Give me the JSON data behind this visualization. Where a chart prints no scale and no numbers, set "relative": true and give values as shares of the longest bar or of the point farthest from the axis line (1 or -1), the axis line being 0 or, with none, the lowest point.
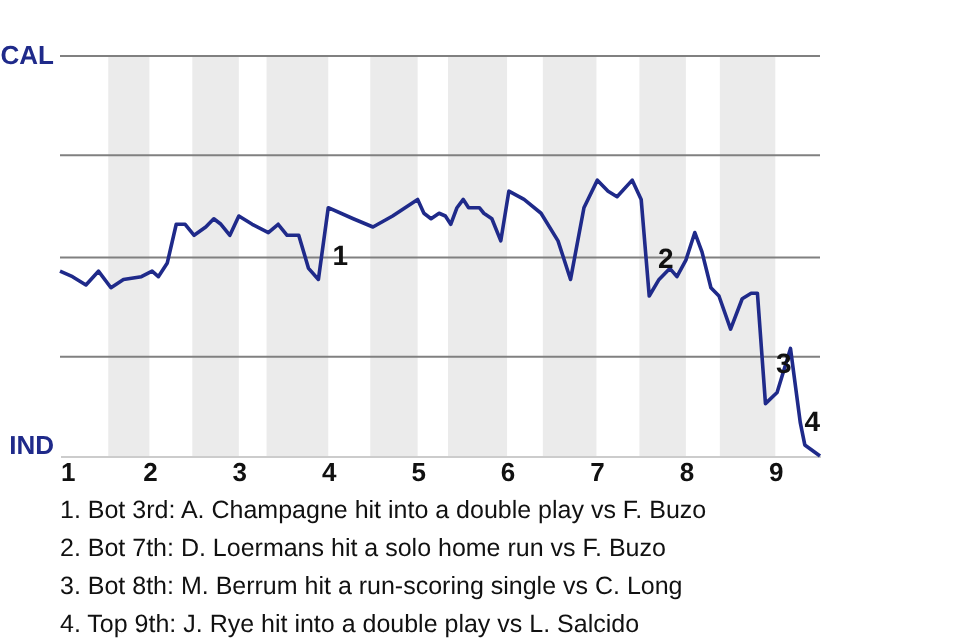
{
  "chart_data": {
    "type": "line",
    "relative": true,
    "x": [
      1.0,
      1.14,
      1.29,
      1.43,
      1.57,
      1.71,
      1.91,
      2.03,
      2.1,
      2.2,
      2.3,
      2.4,
      2.5,
      2.63,
      2.72,
      2.8,
      2.9,
      3.0,
      3.15,
      3.33,
      3.44,
      3.54,
      3.67,
      3.78,
      3.89,
      4.0,
      4.28,
      4.5,
      4.72,
      5.0,
      5.07,
      5.15,
      5.24,
      5.31,
      5.37,
      5.44,
      5.51,
      5.57,
      5.69,
      5.74,
      5.83,
      5.93,
      6.02,
      6.19,
      6.38,
      6.57,
      6.71,
      6.86,
      7.01,
      7.13,
      7.23,
      7.4,
      7.5,
      7.59,
      7.7,
      7.82,
      7.9,
      8.0,
      8.1,
      8.18,
      8.28,
      8.37,
      8.5,
      8.63,
      8.73,
      8.8,
      8.89,
      9.02,
      9.17,
      9.28,
      9.33,
      9.5
    ],
    "series": [
      {
        "color": "#1f2a8a",
        "values": [
          0.67,
          0.65,
          0.62,
          0.67,
          0.61,
          0.64,
          0.65,
          0.67,
          0.65,
          0.7,
          0.84,
          0.84,
          0.8,
          0.83,
          0.86,
          0.84,
          0.8,
          0.87,
          0.84,
          0.81,
          0.84,
          0.8,
          0.8,
          0.68,
          0.64,
          0.9,
          0.86,
          0.83,
          0.87,
          0.93,
          0.88,
          0.86,
          0.88,
          0.87,
          0.84,
          0.9,
          0.93,
          0.9,
          0.9,
          0.88,
          0.86,
          0.78,
          0.96,
          0.93,
          0.88,
          0.78,
          0.64,
          0.9,
          1,
          0.96,
          0.94,
          1,
          0.93,
          0.58,
          0.64,
          0.68,
          0.65,
          0.71,
          0.81,
          0.74,
          0.61,
          0.58,
          0.46,
          0.57,
          0.59,
          0.59,
          0.19,
          0.23,
          0.39,
          0.12,
          0.04,
          0
        ]
      }
    ],
    "xlim": [
      1,
      9.5
    ],
    "xticks": [
      1,
      2,
      3,
      4,
      5,
      6,
      7,
      8,
      9
    ],
    "marker": "none",
    "line_style": "solid",
    "ref_lines": [
      {
        "axis": "y",
        "value": 0.36,
        "color": "#808080"
      },
      {
        "axis": "y",
        "value": 0.72,
        "color": "#808080"
      },
      {
        "axis": "y",
        "value": 1.09,
        "color": "#808080"
      },
      {
        "axis": "y",
        "value": 1.45,
        "color": "#808080"
      }
    ],
    "bands": [
      {
        "axis": "x",
        "from": 1.54,
        "to": 2,
        "color": "#ebebeb"
      },
      {
        "axis": "x",
        "from": 2.48,
        "to": 3,
        "color": "#ebebeb"
      },
      {
        "axis": "x",
        "from": 3.31,
        "to": 4,
        "color": "#ebebeb"
      },
      {
        "axis": "x",
        "from": 4.47,
        "to": 5,
        "color": "#ebebeb"
      },
      {
        "axis": "x",
        "from": 5.34,
        "to": 6,
        "color": "#ebebeb"
      },
      {
        "axis": "x",
        "from": 6.4,
        "to": 7,
        "color": "#ebebeb"
      },
      {
        "axis": "x",
        "from": 7.48,
        "to": 8,
        "color": "#ebebeb"
      },
      {
        "axis": "x",
        "from": 8.38,
        "to": 9,
        "color": "#ebebeb"
      }
    ],
    "annotations": [
      "CAL",
      "IND",
      {
        "text": "1",
        "x": 4.0,
        "y": 0.72
      },
      {
        "text": "2",
        "x": 7.64,
        "y": 0.71
      },
      {
        "text": "3",
        "x": 8.96,
        "y": 0.33
      },
      {
        "text": "4",
        "x": 9.28,
        "y": 0.12
      },
      "1. Bot 3rd: A. Champagne hit into a double play vs F. Buzo",
      "2. Bot 7th: D. Loermans hit a solo home run vs F. Buzo",
      "3. Bot 8th: M. Berrum hit a run-scoring single vs C. Long",
      "4. Top 9th: J. Rye hit into a double play vs L. Salcido"
    ]
  }
}
